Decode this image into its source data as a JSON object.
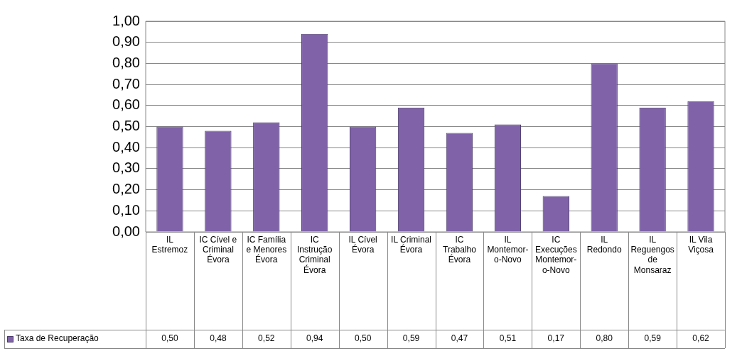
{
  "chart_data": {
    "type": "bar",
    "categories": [
      "IL Estremoz",
      "IC Cível e Criminal Évora",
      "IC Família e Menores Évora",
      "IC Instrução Criminal Évora",
      "IL Cível Évora",
      "IL Criminal Évora",
      "IC Trabalho Évora",
      "IL Montemor-o-Novo",
      "IC Execuções Montemor-o-Novo",
      "IL Redondo",
      "IL Reguengos de Monsaraz",
      "IL Vila Viçosa"
    ],
    "series": [
      {
        "name": "Taxa de Recuperação",
        "color": "#7f62a8",
        "values": [
          0.5,
          0.48,
          0.52,
          0.94,
          0.5,
          0.59,
          0.47,
          0.51,
          0.17,
          0.8,
          0.59,
          0.62
        ],
        "value_labels": [
          "0,50",
          "0,48",
          "0,52",
          "0,94",
          "0,50",
          "0,59",
          "0,47",
          "0,51",
          "0,17",
          "0,80",
          "0,59",
          "0,62"
        ]
      }
    ],
    "ylim": [
      0,
      1
    ],
    "yticks": [
      {
        "value": 0,
        "label": "0,00"
      },
      {
        "value": 0.1,
        "label": "0,10"
      },
      {
        "value": 0.2,
        "label": "0,20"
      },
      {
        "value": 0.3,
        "label": "0,30"
      },
      {
        "value": 0.4,
        "label": "0,40"
      },
      {
        "value": 0.5,
        "label": "0,50"
      },
      {
        "value": 0.6,
        "label": "0,60"
      },
      {
        "value": 0.7,
        "label": "0,70"
      },
      {
        "value": 0.8,
        "label": "0,80"
      },
      {
        "value": 0.9,
        "label": "0,90"
      },
      {
        "value": 1,
        "label": "1,00"
      }
    ],
    "grid": "y",
    "legend": "bottom left"
  }
}
